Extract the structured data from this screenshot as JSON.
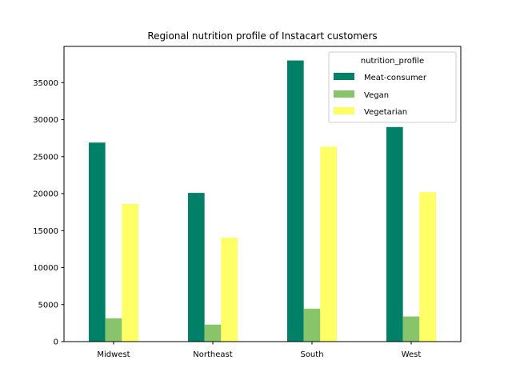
{
  "chart_data": {
    "type": "bar",
    "title": "Regional nutrition profile of Instacart customers",
    "xlabel": "",
    "ylabel": "",
    "categories": [
      "Midwest",
      "Northeast",
      "South",
      "West"
    ],
    "series": [
      {
        "name": "Meat-consumer",
        "values": [
          26900,
          20100,
          38000,
          29000
        ],
        "color": "#008066"
      },
      {
        "name": "Vegan",
        "values": [
          3150,
          2300,
          4450,
          3400
        ],
        "color": "#88c46a"
      },
      {
        "name": "Vegetarian",
        "values": [
          18600,
          14050,
          26350,
          20200
        ],
        "color": "#ffff66"
      }
    ],
    "ylim": [
      0,
      39900
    ],
    "yticks": [
      0,
      5000,
      10000,
      15000,
      20000,
      25000,
      30000,
      35000
    ],
    "legend": {
      "title": "nutrition_profile",
      "position": "top-right"
    },
    "grid": false
  }
}
